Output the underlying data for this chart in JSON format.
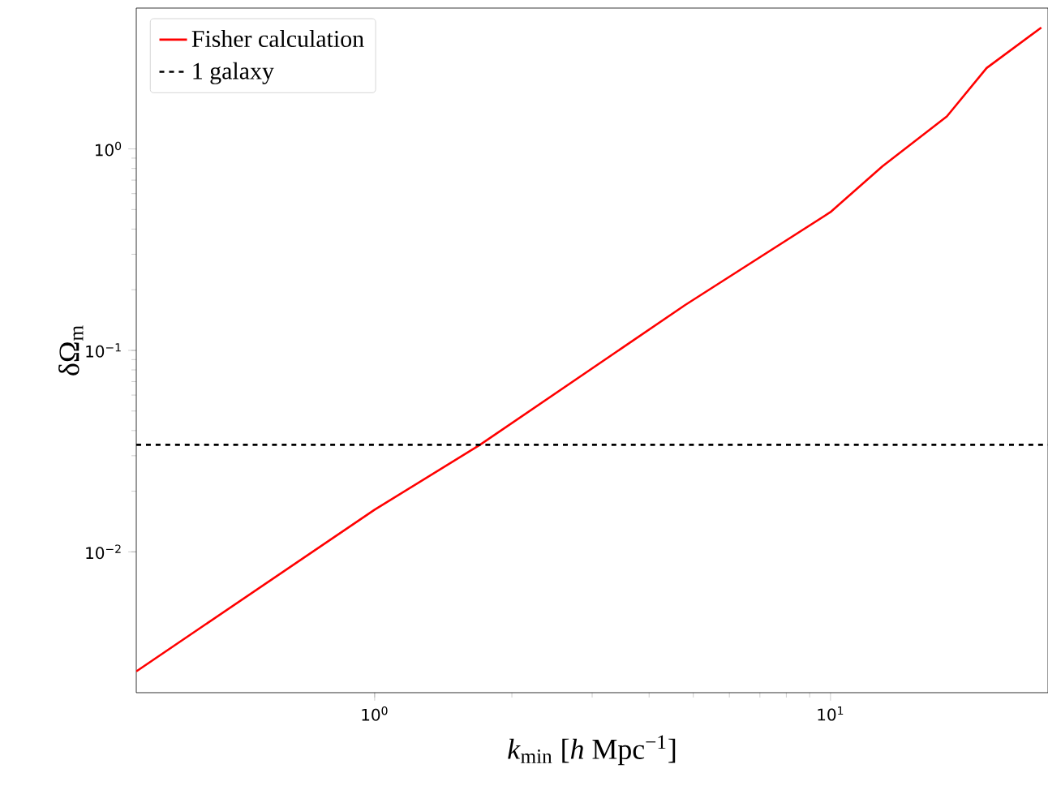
{
  "chart_data": {
    "type": "line",
    "xlabel": "*k*$_{min}$ [*h* Mpc$^{−1}$]",
    "ylabel": "δΩ$_{m}$",
    "x": [
      0.3,
      1,
      1.7,
      4.8,
      10,
      13,
      18,
      22,
      29
    ],
    "series": [
      {
        "name": "Fisher calculation",
        "color": "#ff0000",
        "values": [
          0.00255,
          0.0162,
          0.0339,
          0.168,
          0.486,
          0.82,
          1.45,
          2.52,
          4.0
        ]
      }
    ],
    "ref_lines": [
      {
        "axis": "y",
        "value": 0.034,
        "label": "1 galaxy",
        "color": "#000000",
        "line_style": "dashed"
      }
    ],
    "log": "xy",
    "legend": "top left",
    "line_style": "solid",
    "marker": "none",
    "xlim": [
      0.3,
      30
    ],
    "ylim": [
      0.002,
      5
    ],
    "xticks": [
      {
        "value": 1,
        "label": "10$^{0}$"
      },
      {
        "value": 10,
        "label": "10$^{1}$"
      }
    ],
    "yticks": [
      {
        "value": 0.01,
        "label": "10$^{−2}$"
      },
      {
        "value": 0.1,
        "label": "10$^{−1}$"
      },
      {
        "value": 1,
        "label": "10$^{0}$"
      }
    ]
  }
}
